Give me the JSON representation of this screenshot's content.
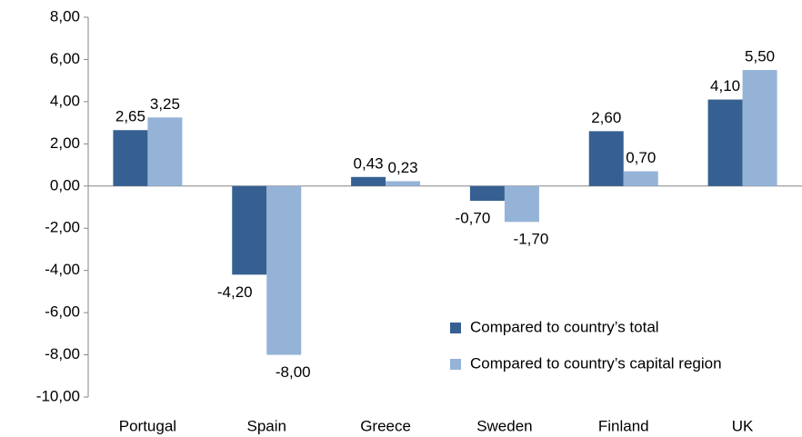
{
  "chart_data": {
    "type": "bar",
    "categories": [
      "Portugal",
      "Spain",
      "Greece",
      "Sweden",
      "Finland",
      "UK"
    ],
    "series": [
      {
        "name": "Compared to country’s total",
        "color": "#376092",
        "values": [
          2.65,
          -4.2,
          0.43,
          -0.7,
          2.6,
          4.1
        ],
        "value_labels": [
          "2,65",
          "-4,20",
          "0,43",
          "-0,70",
          "2,60",
          "4,10"
        ]
      },
      {
        "name": "Compared to country’s capital region",
        "color": "#95b3d7",
        "values": [
          3.25,
          -8,
          0.23,
          -1.7,
          0.7,
          5.5
        ],
        "value_labels": [
          "3,25",
          "-8,00",
          "0,23",
          "-1,70",
          "0,70",
          "5,50"
        ]
      }
    ],
    "ylim": [
      -10,
      8
    ],
    "yticks": [
      {
        "value": 8,
        "label": "8,00"
      },
      {
        "value": 6,
        "label": "6,00"
      },
      {
        "value": 4,
        "label": "4,00"
      },
      {
        "value": 2,
        "label": "2,00"
      },
      {
        "value": 0,
        "label": "0,00"
      },
      {
        "value": -2,
        "label": "-2,00"
      },
      {
        "value": -4,
        "label": "-4,00"
      },
      {
        "value": -6,
        "label": "-6,00"
      },
      {
        "value": -8,
        "label": "-8,00"
      },
      {
        "value": -10,
        "label": "-10,00"
      }
    ],
    "grid": false,
    "legend": "lower right"
  }
}
